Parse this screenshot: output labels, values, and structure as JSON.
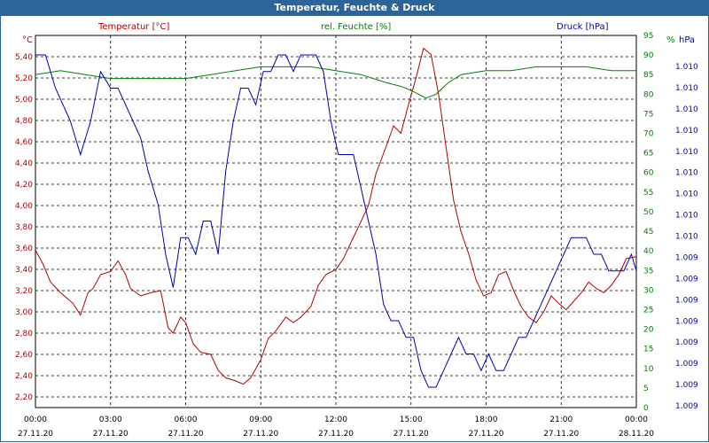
{
  "window": {
    "title": "Temperatur, Feuchte & Druck"
  },
  "colors": {
    "temperature": "#b00000",
    "humidity": "#008000",
    "pressure": "#0000b0",
    "frame": "#2c6499"
  },
  "chart_data": {
    "type": "line",
    "x_ticks": [
      "00:00",
      "03:00",
      "06:00",
      "09:00",
      "12:00",
      "15:00",
      "18:00",
      "21:00",
      "00:00"
    ],
    "x_dates": [
      "27.11.20",
      "27.11.20",
      "27.11.20",
      "27.11.20",
      "27.11.20",
      "27.11.20",
      "27.11.20",
      "27.11.20",
      "28.11.20"
    ],
    "xlim": [
      0,
      24
    ],
    "grid": true,
    "legend": [
      "Temperatur [°C]",
      "rel. Feuchte [%]",
      "Druck [hPa]"
    ],
    "axes": {
      "left": {
        "unit": "°C",
        "ylim": [
          2.1,
          5.6
        ],
        "ticks": [
          "2,20",
          "2,40",
          "2,60",
          "2,80",
          "3,00",
          "3,20",
          "3,40",
          "3,60",
          "3,80",
          "4,00",
          "4,20",
          "4,40",
          "4,60",
          "4,80",
          "5,00",
          "5,20",
          "5,40"
        ]
      },
      "right1": {
        "unit": "%",
        "ylim": [
          0,
          95
        ],
        "ticks": [
          "0",
          "5",
          "10",
          "15",
          "20",
          "25",
          "30",
          "35",
          "40",
          "45",
          "50",
          "55",
          "60",
          "65",
          "70",
          "75",
          "80",
          "85",
          "90",
          "95"
        ]
      },
      "right2": {
        "unit": "hPa",
        "ticks": [
          "1.009",
          "1.009",
          "1.009",
          "1.009",
          "1.009",
          "1.009",
          "1.009",
          "1.009",
          "1.010",
          "1.010",
          "1.010",
          "1.010",
          "1.010",
          "1.010",
          "1.010",
          "1.010",
          "1.010"
        ]
      }
    },
    "series": [
      {
        "name": "Temperatur [°C]",
        "axis": "left",
        "x": [
          0,
          0.3,
          0.6,
          1,
          1.5,
          1.8,
          2.1,
          2.3,
          2.6,
          3,
          3.3,
          3.6,
          3.8,
          4.2,
          4.6,
          5,
          5.3,
          5.5,
          5.8,
          6,
          6.3,
          6.6,
          7,
          7.3,
          7.6,
          8,
          8.3,
          8.6,
          9,
          9.3,
          9.6,
          10,
          10.3,
          10.6,
          11,
          11.3,
          11.6,
          12,
          12.3,
          12.6,
          13,
          13.3,
          13.6,
          14,
          14.3,
          14.6,
          14.9,
          15.2,
          15.5,
          15.8,
          16.1,
          16.4,
          16.7,
          17,
          17.3,
          17.6,
          17.9,
          18.2,
          18.5,
          18.8,
          19.1,
          19.4,
          19.7,
          20,
          20.3,
          20.6,
          20.9,
          21.2,
          21.5,
          21.8,
          22.1,
          22.4,
          22.7,
          23,
          23.3,
          23.6,
          24
        ],
        "values": [
          3.58,
          3.45,
          3.28,
          3.18,
          3.08,
          2.97,
          3.18,
          3.22,
          3.35,
          3.38,
          3.48,
          3.35,
          3.22,
          3.15,
          3.18,
          3.2,
          2.85,
          2.8,
          2.95,
          2.9,
          2.7,
          2.62,
          2.6,
          2.45,
          2.38,
          2.35,
          2.32,
          2.38,
          2.55,
          2.75,
          2.82,
          2.95,
          2.9,
          2.95,
          3.05,
          3.25,
          3.35,
          3.4,
          3.5,
          3.65,
          3.85,
          4.0,
          4.3,
          4.55,
          4.75,
          4.68,
          4.95,
          5.2,
          5.48,
          5.42,
          5.05,
          4.55,
          4.05,
          3.75,
          3.55,
          3.3,
          3.15,
          3.18,
          3.35,
          3.38,
          3.2,
          3.05,
          2.95,
          2.9,
          3.0,
          3.15,
          3.08,
          3.02,
          3.1,
          3.18,
          3.28,
          3.22,
          3.18,
          3.25,
          3.35,
          3.5,
          3.52
        ]
      },
      {
        "name": "rel. Feuchte [%]",
        "axis": "right1",
        "x": [
          0,
          1,
          2,
          3,
          4,
          5,
          6,
          7,
          8,
          9,
          10,
          11,
          12,
          13,
          14,
          14.6,
          15,
          15.3,
          15.6,
          16,
          16.5,
          17,
          18,
          19,
          20,
          21,
          22,
          23,
          24
        ],
        "values": [
          85,
          86,
          85,
          84,
          84,
          84,
          84,
          85,
          86,
          87,
          87,
          87,
          86,
          85,
          83,
          82,
          81,
          80,
          79,
          80,
          83,
          85,
          86,
          86,
          87,
          87,
          87,
          86,
          86
        ]
      },
      {
        "name": "Druck [hPa]",
        "axis": "right2",
        "x": [
          0,
          0.4,
          0.8,
          1.1,
          1.4,
          1.8,
          2.2,
          2.6,
          3,
          3.3,
          3.6,
          3.9,
          4.2,
          4.5,
          4.9,
          5.2,
          5.5,
          5.8,
          6.1,
          6.4,
          6.7,
          7,
          7.3,
          7.6,
          7.9,
          8.2,
          8.5,
          8.8,
          9.1,
          9.4,
          9.7,
          10,
          10.3,
          10.6,
          10.9,
          11.2,
          11.5,
          11.8,
          12.1,
          12.4,
          12.7,
          13,
          13.3,
          13.6,
          13.9,
          14.2,
          14.5,
          14.8,
          15.1,
          15.4,
          15.7,
          16,
          16.3,
          16.6,
          16.9,
          17.2,
          17.5,
          17.8,
          18.1,
          18.4,
          18.7,
          19,
          19.3,
          19.6,
          19.9,
          20.2,
          20.5,
          20.8,
          21.1,
          21.4,
          21.7,
          22,
          22.3,
          22.6,
          22.9,
          23.2,
          23.5,
          23.8,
          24
        ],
        "values": [
          1.0104,
          1.0104,
          1.0102,
          1.0101,
          1.01,
          1.0098,
          1.01,
          1.0103,
          1.0102,
          1.0102,
          1.0101,
          1.01,
          1.0099,
          1.0097,
          1.0095,
          1.0092,
          1.009,
          1.0093,
          1.0093,
          1.0092,
          1.0094,
          1.0094,
          1.0092,
          1.0097,
          1.01,
          1.0102,
          1.0102,
          1.0101,
          1.0103,
          1.0103,
          1.0104,
          1.0104,
          1.0103,
          1.0104,
          1.0104,
          1.0104,
          1.0103,
          1.01,
          1.0098,
          1.0098,
          1.0098,
          1.0096,
          1.0094,
          1.0092,
          1.0089,
          1.0088,
          1.0088,
          1.0087,
          1.0087,
          1.0085,
          1.0084,
          1.0084,
          1.0085,
          1.0086,
          1.0087,
          1.0086,
          1.0086,
          1.0085,
          1.0086,
          1.0085,
          1.0085,
          1.0086,
          1.0087,
          1.0087,
          1.0088,
          1.0089,
          1.009,
          1.0091,
          1.0092,
          1.0093,
          1.0093,
          1.0093,
          1.0092,
          1.0092,
          1.0091,
          1.0091,
          1.0091,
          1.0092,
          1.0091
        ]
      }
    ]
  }
}
